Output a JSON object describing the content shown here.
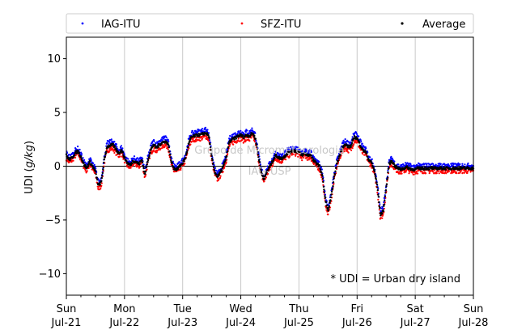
{
  "chart_data": {
    "type": "scatter",
    "title": "",
    "xlabel": "",
    "ylabel": "UDI (g/kg)",
    "ylabel_prefix": "UDI (",
    "ylabel_unit": "g/kg",
    "ylabel_suffix": ")",
    "xlim": [
      0,
      7
    ],
    "ylim": [
      -12,
      12
    ],
    "yticks": [
      -10,
      -5,
      0,
      5,
      10
    ],
    "xticks": [
      {
        "day": "Sun",
        "date": "Jul-21"
      },
      {
        "day": "Mon",
        "date": "Jul-22"
      },
      {
        "day": "Tue",
        "date": "Jul-23"
      },
      {
        "day": "Wed",
        "date": "Jul-24"
      },
      {
        "day": "Thu",
        "date": "Jul-25"
      },
      {
        "day": "Fri",
        "date": "Jul-26"
      },
      {
        "day": "Sat",
        "date": "Jul-27"
      },
      {
        "day": "Sun",
        "date": "Jul-28"
      }
    ],
    "grid": "vertical",
    "legend_placement": "top",
    "annotation": "* UDI = Urban dry island",
    "watermark": [
      "Grupo de Micrometeorologia",
      "IAG-USP"
    ],
    "series": [
      {
        "name": "IAG-ITU",
        "color": "#0000ff",
        "offset": 0.25
      },
      {
        "name": "SFZ-ITU",
        "color": "#ff0000",
        "offset": -0.25
      },
      {
        "name": "Average",
        "color": "#000000",
        "offset": 0
      }
    ],
    "average_profile": {
      "x": [
        0.0,
        0.05,
        0.1,
        0.15,
        0.2,
        0.25,
        0.3,
        0.35,
        0.4,
        0.45,
        0.5,
        0.55,
        0.6,
        0.65,
        0.7,
        0.75,
        0.8,
        0.85,
        0.9,
        0.95,
        1.0,
        1.05,
        1.1,
        1.15,
        1.2,
        1.25,
        1.3,
        1.35,
        1.4,
        1.45,
        1.5,
        1.55,
        1.6,
        1.65,
        1.7,
        1.75,
        1.8,
        1.85,
        1.9,
        1.95,
        2.0,
        2.05,
        2.1,
        2.15,
        2.2,
        2.25,
        2.3,
        2.35,
        2.4,
        2.45,
        2.5,
        2.55,
        2.6,
        2.65,
        2.7,
        2.75,
        2.8,
        2.85,
        2.9,
        2.95,
        3.0,
        3.05,
        3.1,
        3.15,
        3.2,
        3.25,
        3.3,
        3.35,
        3.4,
        3.45,
        3.5,
        3.55,
        3.6,
        3.65,
        3.7,
        3.75,
        3.8,
        3.85,
        3.9,
        3.95,
        4.0,
        4.05,
        4.1,
        4.15,
        4.2,
        4.25,
        4.3,
        4.35,
        4.4,
        4.45,
        4.5,
        4.55,
        4.6,
        4.65,
        4.7,
        4.75,
        4.8,
        4.85,
        4.9,
        4.95,
        5.0,
        5.05,
        5.1,
        5.15,
        5.2,
        5.25,
        5.3,
        5.35,
        5.4,
        5.45,
        5.5,
        5.55,
        5.6,
        5.65,
        5.7,
        5.75,
        5.8,
        5.85,
        5.9,
        5.95,
        6.0,
        6.05,
        6.1,
        6.15,
        6.2,
        6.25,
        6.3,
        6.35,
        6.4,
        6.45,
        6.5,
        6.55,
        6.6,
        6.65,
        6.7,
        6.75,
        6.8,
        6.85,
        6.9,
        6.95,
        7.0
      ],
      "y": [
        1.0,
        0.6,
        0.8,
        1.2,
        1.4,
        0.9,
        0.2,
        -0.2,
        0.4,
        0.0,
        -0.5,
        -1.8,
        -1.5,
        0.5,
        1.8,
        1.9,
        2.0,
        1.6,
        1.2,
        1.5,
        0.8,
        0.3,
        0.1,
        0.5,
        0.4,
        0.2,
        0.6,
        -0.8,
        0.5,
        1.5,
        2.0,
        1.7,
        2.0,
        2.2,
        2.3,
        2.1,
        0.5,
        -0.2,
        -0.3,
        0.0,
        0.3,
        0.8,
        2.0,
        2.7,
        2.8,
        2.9,
        2.9,
        3.0,
        3.1,
        2.8,
        0.8,
        -0.5,
        -1.0,
        -0.6,
        0.0,
        0.8,
        2.2,
        2.5,
        2.6,
        2.8,
        2.9,
        2.7,
        2.9,
        2.8,
        3.1,
        2.6,
        1.0,
        -0.5,
        -1.2,
        -0.5,
        0.0,
        0.5,
        1.0,
        0.8,
        0.7,
        0.9,
        1.2,
        1.3,
        1.5,
        1.4,
        1.3,
        1.0,
        1.2,
        1.0,
        1.1,
        0.5,
        0.3,
        0.0,
        -0.8,
        -3.0,
        -4.2,
        -3.0,
        -1.2,
        0.2,
        1.0,
        1.8,
        2.0,
        1.8,
        1.9,
        2.7,
        2.6,
        2.0,
        1.5,
        1.3,
        0.6,
        0.3,
        -0.5,
        -2.0,
        -4.5,
        -4.2,
        -2.0,
        0.2,
        0.5,
        0.0,
        -0.2,
        -0.3,
        -0.2,
        -0.1,
        -0.2,
        -0.3,
        -0.3,
        -0.2,
        -0.2,
        -0.2,
        -0.2,
        -0.2,
        -0.2,
        -0.2,
        -0.2,
        -0.2,
        -0.2,
        -0.2,
        -0.2,
        -0.2,
        -0.2,
        -0.2,
        -0.2,
        -0.2,
        -0.2,
        -0.2,
        -0.2
      ]
    }
  }
}
